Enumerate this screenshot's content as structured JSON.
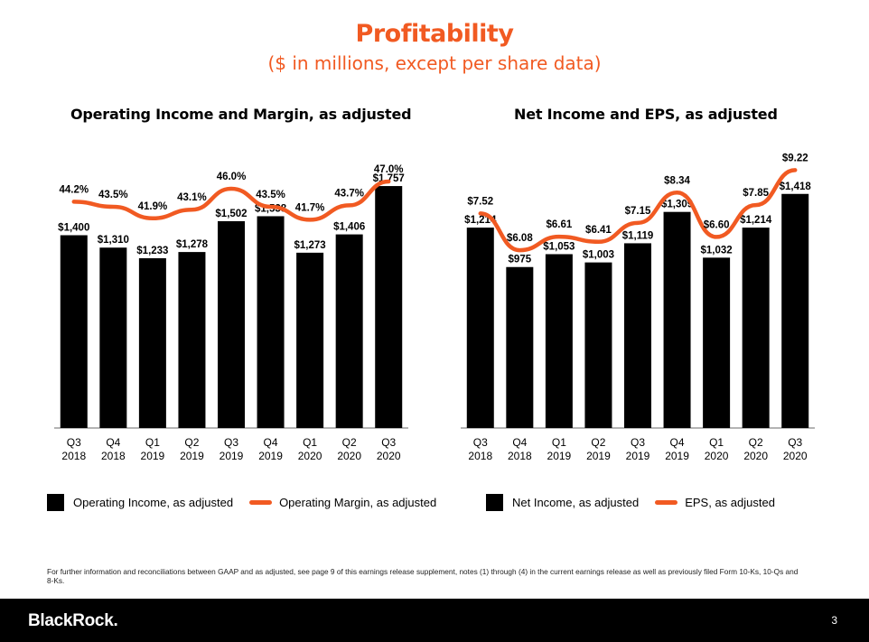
{
  "page": {
    "title": "Profitability",
    "subtitle": "($ in millions, except per share data)",
    "footnote": "For further information and reconciliations between GAAP and as adjusted, see page 9 of this earnings release supplement, notes (1) through (4) in the current earnings release as well as previously filed Form 10-Ks, 10-Qs and 8-Ks.",
    "logo": "BlackRock.",
    "page_number": "3"
  },
  "colors": {
    "bar": "#000000",
    "line": "#f15a22",
    "title": "#f15a22",
    "axis": "#888888"
  },
  "chart_data": [
    {
      "type": "bar",
      "title": "Operating Income and Margin, as adjusted",
      "categories": [
        "Q3 2018",
        "Q4 2018",
        "Q1 2019",
        "Q2 2019",
        "Q3 2019",
        "Q4 2019",
        "Q1 2020",
        "Q2 2020",
        "Q3 2020"
      ],
      "category_lines": [
        [
          "Q3",
          "2018"
        ],
        [
          "Q4",
          "2018"
        ],
        [
          "Q1",
          "2019"
        ],
        [
          "Q2",
          "2019"
        ],
        [
          "Q3",
          "2019"
        ],
        [
          "Q4",
          "2019"
        ],
        [
          "Q1",
          "2020"
        ],
        [
          "Q2",
          "2020"
        ],
        [
          "Q3",
          "2020"
        ]
      ],
      "series": [
        {
          "name": "Operating Income, as adjusted",
          "type": "bar",
          "values": [
            1400,
            1310,
            1233,
            1278,
            1502,
            1538,
            1273,
            1406,
            1757
          ],
          "labels": [
            "$1,400",
            "$1,310",
            "$1,233",
            "$1,278",
            "$1,502",
            "$1,538",
            "$1,273",
            "$1,406",
            "$1,757"
          ]
        },
        {
          "name": "Operating Margin, as adjusted",
          "type": "line",
          "values": [
            44.2,
            43.5,
            41.9,
            43.1,
            46.0,
            43.5,
            41.7,
            43.7,
            47.0
          ],
          "labels": [
            "44.2%",
            "43.5%",
            "41.9%",
            "43.1%",
            "46.0%",
            "43.5%",
            "41.7%",
            "43.7%",
            "47.0%"
          ]
        }
      ],
      "bar_range": [
        0,
        2000
      ],
      "line_range": [
        25,
        48
      ]
    },
    {
      "type": "bar",
      "title": "Net Income and EPS, as adjusted",
      "categories": [
        "Q3 2018",
        "Q4 2018",
        "Q1 2019",
        "Q2 2019",
        "Q3 2019",
        "Q4 2019",
        "Q1 2020",
        "Q2 2020",
        "Q3 2020"
      ],
      "category_lines": [
        [
          "Q3",
          "2018"
        ],
        [
          "Q4",
          "2018"
        ],
        [
          "Q1",
          "2019"
        ],
        [
          "Q2",
          "2019"
        ],
        [
          "Q3",
          "2019"
        ],
        [
          "Q4",
          "2019"
        ],
        [
          "Q1",
          "2020"
        ],
        [
          "Q2",
          "2020"
        ],
        [
          "Q3",
          "2020"
        ]
      ],
      "series": [
        {
          "name": "Net Income, as adjusted",
          "type": "bar",
          "values": [
            1214,
            975,
            1053,
            1003,
            1119,
            1309,
            1032,
            1214,
            1418
          ],
          "labels": [
            "$1,214",
            "$975",
            "$1,053",
            "$1,003",
            "$1,119",
            "$1,309",
            "$1,032",
            "$1,214",
            "$1,418"
          ]
        },
        {
          "name": "EPS, as adjusted",
          "type": "line",
          "values": [
            7.52,
            6.08,
            6.61,
            6.41,
            7.15,
            8.34,
            6.6,
            7.85,
            9.22
          ],
          "labels": [
            "$7.52",
            "$6.08",
            "$6.61",
            "$6.41",
            "$7.15",
            "$8.34",
            "$6.60",
            "$7.85",
            "$9.22"
          ]
        }
      ],
      "bar_range": [
        0,
        1630
      ],
      "line_range": [
        3.5,
        9.8
      ]
    }
  ]
}
